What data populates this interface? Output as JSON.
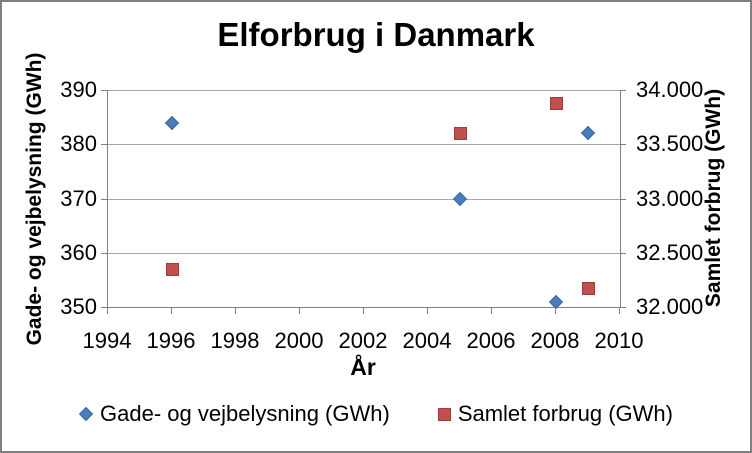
{
  "chart_data": {
    "type": "scatter",
    "title": "Elforbrug i Danmark",
    "xlabel": "År",
    "ylabel_left": "Gade- og vejbelysning (GWh)",
    "ylabel_right": "Samlet forbrug (GWh)",
    "xlim": [
      1994,
      2010
    ],
    "ylim_left": [
      350,
      390
    ],
    "ylim_right": [
      32000,
      34000
    ],
    "grid": true,
    "legend_position": "bottom",
    "x_ticks": [
      {
        "value": 1994,
        "label": "1994"
      },
      {
        "value": 1996,
        "label": "1996"
      },
      {
        "value": 1998,
        "label": "1998"
      },
      {
        "value": 2000,
        "label": "2000"
      },
      {
        "value": 2002,
        "label": "2002"
      },
      {
        "value": 2004,
        "label": "2004"
      },
      {
        "value": 2006,
        "label": "2006"
      },
      {
        "value": 2008,
        "label": "2008"
      },
      {
        "value": 2010,
        "label": "2010"
      }
    ],
    "y_ticks_left": [
      {
        "value": 350,
        "label": "350"
      },
      {
        "value": 360,
        "label": "360"
      },
      {
        "value": 370,
        "label": "370"
      },
      {
        "value": 380,
        "label": "380"
      },
      {
        "value": 390,
        "label": "390"
      }
    ],
    "y_ticks_right": [
      {
        "value": 32000,
        "label": "32.000"
      },
      {
        "value": 32500,
        "label": "32.500"
      },
      {
        "value": 33000,
        "label": "33.000"
      },
      {
        "value": 33500,
        "label": "33.500"
      },
      {
        "value": 34000,
        "label": "34.000"
      }
    ],
    "series": [
      {
        "name": "Gade- og vejbelysning (GWh)",
        "axis": "left",
        "marker": "diamond",
        "fill": "#4a7ebb",
        "stroke": "#3a65a0",
        "points": [
          {
            "x": 1996,
            "y": 384
          },
          {
            "x": 2005,
            "y": 370
          },
          {
            "x": 2008,
            "y": 351
          },
          {
            "x": 2009,
            "y": 382
          }
        ]
      },
      {
        "name": "Samlet forbrug (GWh)",
        "axis": "right",
        "marker": "square",
        "fill": "#c0504d",
        "stroke": "#9c3e3b",
        "points": [
          {
            "x": 1996,
            "y": 32350
          },
          {
            "x": 2005,
            "y": 33600
          },
          {
            "x": 2008,
            "y": 33875
          },
          {
            "x": 2009,
            "y": 32170
          }
        ]
      }
    ],
    "colors": {
      "gridline": "#a6a6a6",
      "axis_line": "#808080",
      "frame_border": "#7f7f7f",
      "background": "#ffffff",
      "text": "#000000"
    }
  },
  "legend": {
    "items": [
      {
        "label": "Gade- og vejbelysning (GWh)",
        "marker": "diamond"
      },
      {
        "label": "Samlet forbrug (GWh)",
        "marker": "square"
      }
    ]
  }
}
